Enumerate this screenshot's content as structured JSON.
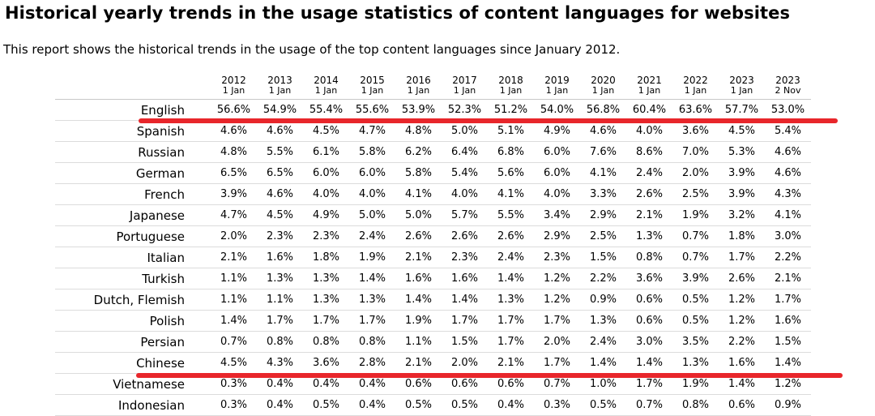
{
  "title": "Historical yearly trends in the usage statistics of content languages for websites",
  "intro": "This report shows the historical trends in the usage of the top content languages since January 2012.",
  "columns": [
    {
      "year": "2012",
      "date": "1 Jan"
    },
    {
      "year": "2013",
      "date": "1 Jan"
    },
    {
      "year": "2014",
      "date": "1 Jan"
    },
    {
      "year": "2015",
      "date": "1 Jan"
    },
    {
      "year": "2016",
      "date": "1 Jan"
    },
    {
      "year": "2017",
      "date": "1 Jan"
    },
    {
      "year": "2018",
      "date": "1 Jan"
    },
    {
      "year": "2019",
      "date": "1 Jan"
    },
    {
      "year": "2020",
      "date": "1 Jan"
    },
    {
      "year": "2021",
      "date": "1 Jan"
    },
    {
      "year": "2022",
      "date": "1 Jan"
    },
    {
      "year": "2023",
      "date": "1 Jan"
    },
    {
      "year": "2023",
      "date": "2 Nov"
    }
  ],
  "rows": [
    {
      "language": "English",
      "values": [
        "56.6%",
        "54.9%",
        "55.4%",
        "55.6%",
        "53.9%",
        "52.3%",
        "51.2%",
        "54.0%",
        "56.8%",
        "60.4%",
        "63.6%",
        "57.7%",
        "53.0%"
      ]
    },
    {
      "language": "Spanish",
      "values": [
        "4.6%",
        "4.6%",
        "4.5%",
        "4.7%",
        "4.8%",
        "5.0%",
        "5.1%",
        "4.9%",
        "4.6%",
        "4.0%",
        "3.6%",
        "4.5%",
        "5.4%"
      ]
    },
    {
      "language": "Russian",
      "values": [
        "4.8%",
        "5.5%",
        "6.1%",
        "5.8%",
        "6.2%",
        "6.4%",
        "6.8%",
        "6.0%",
        "7.6%",
        "8.6%",
        "7.0%",
        "5.3%",
        "4.6%"
      ]
    },
    {
      "language": "German",
      "values": [
        "6.5%",
        "6.5%",
        "6.0%",
        "6.0%",
        "5.8%",
        "5.4%",
        "5.6%",
        "6.0%",
        "4.1%",
        "2.4%",
        "2.0%",
        "3.9%",
        "4.6%"
      ]
    },
    {
      "language": "French",
      "values": [
        "3.9%",
        "4.6%",
        "4.0%",
        "4.0%",
        "4.1%",
        "4.0%",
        "4.1%",
        "4.0%",
        "3.3%",
        "2.6%",
        "2.5%",
        "3.9%",
        "4.3%"
      ]
    },
    {
      "language": "Japanese",
      "values": [
        "4.7%",
        "4.5%",
        "4.9%",
        "5.0%",
        "5.0%",
        "5.7%",
        "5.5%",
        "3.4%",
        "2.9%",
        "2.1%",
        "1.9%",
        "3.2%",
        "4.1%"
      ]
    },
    {
      "language": "Portuguese",
      "values": [
        "2.0%",
        "2.3%",
        "2.3%",
        "2.4%",
        "2.6%",
        "2.6%",
        "2.6%",
        "2.9%",
        "2.5%",
        "1.3%",
        "0.7%",
        "1.8%",
        "3.0%"
      ]
    },
    {
      "language": "Italian",
      "values": [
        "2.1%",
        "1.6%",
        "1.8%",
        "1.9%",
        "2.1%",
        "2.3%",
        "2.4%",
        "2.3%",
        "1.5%",
        "0.8%",
        "0.7%",
        "1.7%",
        "2.2%"
      ]
    },
    {
      "language": "Turkish",
      "values": [
        "1.1%",
        "1.3%",
        "1.3%",
        "1.4%",
        "1.6%",
        "1.6%",
        "1.4%",
        "1.2%",
        "2.2%",
        "3.6%",
        "3.9%",
        "2.6%",
        "2.1%"
      ]
    },
    {
      "language": "Dutch, Flemish",
      "values": [
        "1.1%",
        "1.1%",
        "1.3%",
        "1.3%",
        "1.4%",
        "1.4%",
        "1.3%",
        "1.2%",
        "0.9%",
        "0.6%",
        "0.5%",
        "1.2%",
        "1.7%"
      ]
    },
    {
      "language": "Polish",
      "values": [
        "1.4%",
        "1.7%",
        "1.7%",
        "1.7%",
        "1.9%",
        "1.7%",
        "1.7%",
        "1.7%",
        "1.3%",
        "0.6%",
        "0.5%",
        "1.2%",
        "1.6%"
      ]
    },
    {
      "language": "Persian",
      "values": [
        "0.7%",
        "0.8%",
        "0.8%",
        "0.8%",
        "1.1%",
        "1.5%",
        "1.7%",
        "2.0%",
        "2.4%",
        "3.0%",
        "3.5%",
        "2.2%",
        "1.5%"
      ]
    },
    {
      "language": "Chinese",
      "values": [
        "4.5%",
        "4.3%",
        "3.6%",
        "2.8%",
        "2.1%",
        "2.0%",
        "2.1%",
        "1.7%",
        "1.4%",
        "1.4%",
        "1.3%",
        "1.6%",
        "1.4%"
      ]
    },
    {
      "language": "Vietnamese",
      "values": [
        "0.3%",
        "0.4%",
        "0.4%",
        "0.4%",
        "0.6%",
        "0.6%",
        "0.6%",
        "0.7%",
        "1.0%",
        "1.7%",
        "1.9%",
        "1.4%",
        "1.2%"
      ]
    },
    {
      "language": "Indonesian",
      "values": [
        "0.3%",
        "0.4%",
        "0.5%",
        "0.4%",
        "0.5%",
        "0.5%",
        "0.4%",
        "0.3%",
        "0.5%",
        "0.7%",
        "0.8%",
        "0.6%",
        "0.9%"
      ]
    }
  ],
  "highlights": [
    {
      "label": "English",
      "color": "#e8262b"
    },
    {
      "label": "Chinese",
      "color": "#e8262b"
    }
  ],
  "colors": {
    "highlight": "#e8262b",
    "row_border": "#dcdcdc",
    "header_border": "#c8c8c8"
  }
}
